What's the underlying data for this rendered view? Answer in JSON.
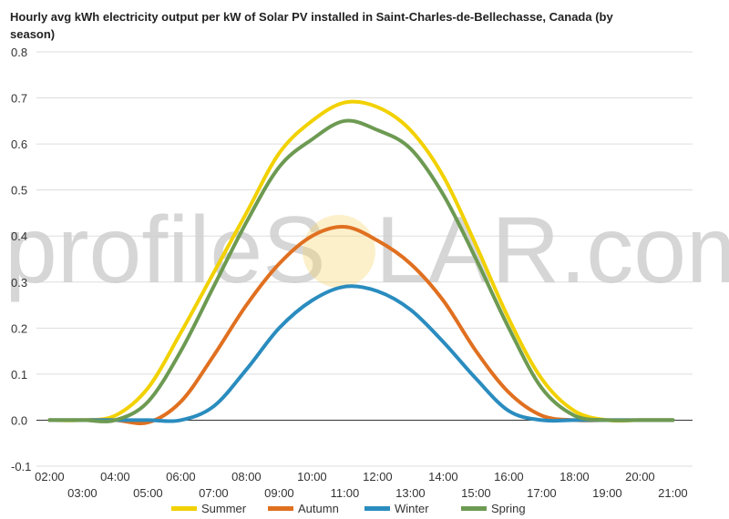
{
  "chart_data": {
    "type": "line",
    "title_line1": "Hourly avg kWh electricity output per kW of Solar PV installed in Saint-Charles-de-Bellechasse, Canada (by",
    "title_line2": "season)",
    "watermark_left": "profileS",
    "watermark_right": "LAR.com",
    "watermark_sun_color": "#f5d36b",
    "ylim": [
      -0.1,
      0.8
    ],
    "yticks": [
      "0.8",
      "0.7",
      "0.6",
      "0.5",
      "0.4",
      "0.3",
      "0.2",
      "0.1",
      "0.0",
      "-0.1"
    ],
    "ytick_values": [
      0.8,
      0.7,
      0.6,
      0.5,
      0.4,
      0.3,
      0.2,
      0.1,
      0.0,
      -0.1
    ],
    "x_hours": [
      2,
      3,
      4,
      5,
      6,
      7,
      8,
      9,
      10,
      11,
      12,
      13,
      14,
      15,
      16,
      17,
      18,
      19,
      20,
      21
    ],
    "xticks_top": [
      "02:00",
      "04:00",
      "06:00",
      "08:00",
      "10:00",
      "12:00",
      "14:00",
      "16:00",
      "18:00",
      "20:00"
    ],
    "xticks_bottom": [
      "03:00",
      "05:00",
      "07:00",
      "09:00",
      "11:00",
      "13:00",
      "15:00",
      "17:00",
      "19:00",
      "21:00"
    ],
    "grid": true,
    "legend_position": "bottom",
    "series": [
      {
        "name": "Summer",
        "color": "#f2d100",
        "values": [
          0.0,
          0.0,
          0.01,
          0.07,
          0.19,
          0.32,
          0.45,
          0.58,
          0.65,
          0.69,
          0.68,
          0.63,
          0.53,
          0.38,
          0.22,
          0.09,
          0.02,
          0.0,
          0.0,
          0.0
        ]
      },
      {
        "name": "Autumn",
        "color": "#e07020",
        "values": [
          0.0,
          0.0,
          0.0,
          -0.005,
          0.04,
          0.14,
          0.25,
          0.34,
          0.4,
          0.42,
          0.39,
          0.34,
          0.26,
          0.15,
          0.06,
          0.01,
          0.0,
          0.0,
          0.0,
          0.0
        ]
      },
      {
        "name": "Winter",
        "color": "#2a8cbf",
        "values": [
          0.0,
          0.0,
          0.0,
          0.0,
          0.0,
          0.03,
          0.11,
          0.2,
          0.26,
          0.29,
          0.28,
          0.24,
          0.17,
          0.09,
          0.02,
          0.0,
          0.0,
          0.0,
          0.0,
          0.0
        ]
      },
      {
        "name": "Spring",
        "color": "#6d9a52",
        "values": [
          0.0,
          0.0,
          0.0,
          0.04,
          0.15,
          0.29,
          0.43,
          0.55,
          0.61,
          0.65,
          0.63,
          0.59,
          0.49,
          0.35,
          0.2,
          0.07,
          0.01,
          0.0,
          0.0,
          0.0
        ]
      }
    ]
  }
}
